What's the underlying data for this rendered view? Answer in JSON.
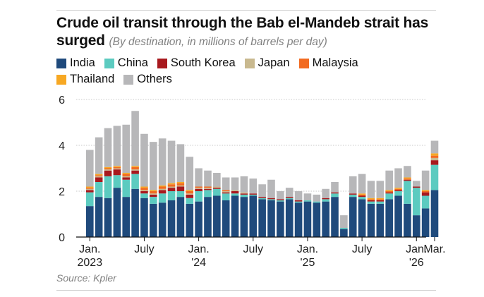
{
  "header": {
    "title": "Crude oil transit through the Bab el-Mandeb strait has surged",
    "subtitle": "(By destination, in millions of barrels per day)"
  },
  "source": "Source: Kpler",
  "chart_data": {
    "type": "bar",
    "stacked": true,
    "ylim": [
      0,
      6
    ],
    "y_ticks": [
      "0",
      "2",
      "4",
      "6"
    ],
    "x_ticks": [
      {
        "index": 0,
        "lines": [
          "Jan.",
          "2023"
        ]
      },
      {
        "index": 6,
        "lines": [
          "July"
        ]
      },
      {
        "index": 12,
        "lines": [
          "Jan.",
          "'24"
        ]
      },
      {
        "index": 18,
        "lines": [
          "July"
        ]
      },
      {
        "index": 24,
        "lines": [
          "Jan.",
          "'25"
        ]
      },
      {
        "index": 30,
        "lines": [
          "July"
        ]
      },
      {
        "index": 36,
        "lines": [
          "Jan.",
          "'26"
        ]
      },
      {
        "index": 38,
        "lines": [
          "Mar."
        ]
      }
    ],
    "categories": [
      "Jan 2023",
      "Feb 2023",
      "Mar 2023",
      "Apr 2023",
      "May 2023",
      "Jun 2023",
      "Jul 2023",
      "Aug 2023",
      "Sep 2023",
      "Oct 2023",
      "Nov 2023",
      "Dec 2023",
      "Jan 2024",
      "Feb 2024",
      "Mar 2024",
      "Apr 2024",
      "May 2024",
      "Jun 2024",
      "Jul 2024",
      "Aug 2024",
      "Sep 2024",
      "Oct 2024",
      "Nov 2024",
      "Dec 2024",
      "Jan 2025",
      "Feb 2025",
      "Mar 2025",
      "Apr 2025",
      "May 2025",
      "Jun 2025",
      "Jul 2025",
      "Aug 2025",
      "Sep 2025",
      "Oct 2025",
      "Nov 2025",
      "Dec 2025",
      "Jan 2026",
      "Feb 2026",
      "Mar 2026"
    ],
    "series": [
      {
        "name": "India",
        "color": "#1f4a7c",
        "values": [
          1.35,
          1.75,
          1.7,
          2.15,
          1.75,
          2.1,
          1.7,
          1.45,
          1.5,
          1.6,
          1.75,
          1.45,
          1.55,
          1.75,
          1.8,
          1.6,
          1.8,
          1.75,
          1.8,
          1.65,
          1.6,
          1.55,
          1.65,
          1.5,
          1.55,
          1.5,
          1.55,
          1.75,
          0.35,
          1.75,
          1.65,
          1.45,
          1.45,
          1.65,
          1.8,
          1.45,
          0.95,
          1.25,
          2.05
        ]
      },
      {
        "name": "China",
        "color": "#5ccbc0",
        "values": [
          0.6,
          0.65,
          0.95,
          0.55,
          0.75,
          0.65,
          0.2,
          0.3,
          0.4,
          0.4,
          0.25,
          0.25,
          0.45,
          0.3,
          0.3,
          0.3,
          0.1,
          0.1,
          0.05,
          0.05,
          0.05,
          0.05,
          0.05,
          0.05,
          0.05,
          0.05,
          0.1,
          0.15,
          0.05,
          0.1,
          0.1,
          0.1,
          0.1,
          0.25,
          0.2,
          1.0,
          1.2,
          0.55,
          1.1
        ]
      },
      {
        "name": "South Korea",
        "color": "#a8191e",
        "values": [
          0.1,
          0.2,
          0.25,
          0.25,
          0.1,
          0.15,
          0.1,
          0.1,
          0.15,
          0.15,
          0.2,
          0.15,
          0.1,
          0.05,
          0.05,
          0.05,
          0.1,
          0.05,
          0.05,
          0.05,
          0.05,
          0.05,
          0.05,
          0.05,
          0,
          0,
          0.05,
          0.05,
          0,
          0.05,
          0.05,
          0.05,
          0.05,
          0.05,
          0.05,
          0.05,
          0.05,
          0.15,
          0.2
        ]
      },
      {
        "name": "Japan",
        "color": "#c9b98f",
        "values": [
          0.05,
          0.05,
          0.05,
          0.05,
          0.05,
          0.05,
          0.05,
          0.05,
          0.05,
          0.05,
          0.05,
          0.05,
          0.05,
          0.05,
          0.05,
          0.05,
          0.05,
          0.05,
          0,
          0,
          0,
          0,
          0,
          0,
          0,
          0,
          0,
          0,
          0,
          0,
          0,
          0,
          0,
          0,
          0,
          0,
          0,
          0,
          0.1
        ]
      },
      {
        "name": "Malaysia",
        "color": "#f26b21",
        "values": [
          0.05,
          0.05,
          0.05,
          0.05,
          0.1,
          0.1,
          0.1,
          0.1,
          0.1,
          0.1,
          0.1,
          0.1,
          0.05,
          0.05,
          0,
          0.05,
          0,
          0,
          0,
          0,
          0,
          0,
          0,
          0,
          0,
          0,
          0,
          0,
          0,
          0,
          0.05,
          0.05,
          0.05,
          0.05,
          0.05,
          0.05,
          0,
          0.05,
          0.1
        ]
      },
      {
        "name": "Thailand",
        "color": "#f7a823",
        "values": [
          0.05,
          0.05,
          0.05,
          0.05,
          0.05,
          0.05,
          0.05,
          0.05,
          0.05,
          0.05,
          0.05,
          0.05,
          0,
          0,
          0,
          0,
          0,
          0,
          0,
          0,
          0,
          0,
          0,
          0,
          0,
          0,
          0,
          0,
          0,
          0,
          0.05,
          0.05,
          0.05,
          0.05,
          0.05,
          0.05,
          0,
          0.05,
          0.1
        ]
      },
      {
        "name": "Others",
        "color": "#b7b7b9",
        "values": [
          1.6,
          1.6,
          1.7,
          1.75,
          2.1,
          2.4,
          2.3,
          2.1,
          2.05,
          1.85,
          1.65,
          1.45,
          0.8,
          0.7,
          0.6,
          0.55,
          0.55,
          0.7,
          0.65,
          0.55,
          0.8,
          0.35,
          0.4,
          0.4,
          0.3,
          0.3,
          0.4,
          0.45,
          0.55,
          0.75,
          0.85,
          0.75,
          0.75,
          0.85,
          0.85,
          0.5,
          0.25,
          0.85,
          0.55
        ]
      }
    ]
  }
}
